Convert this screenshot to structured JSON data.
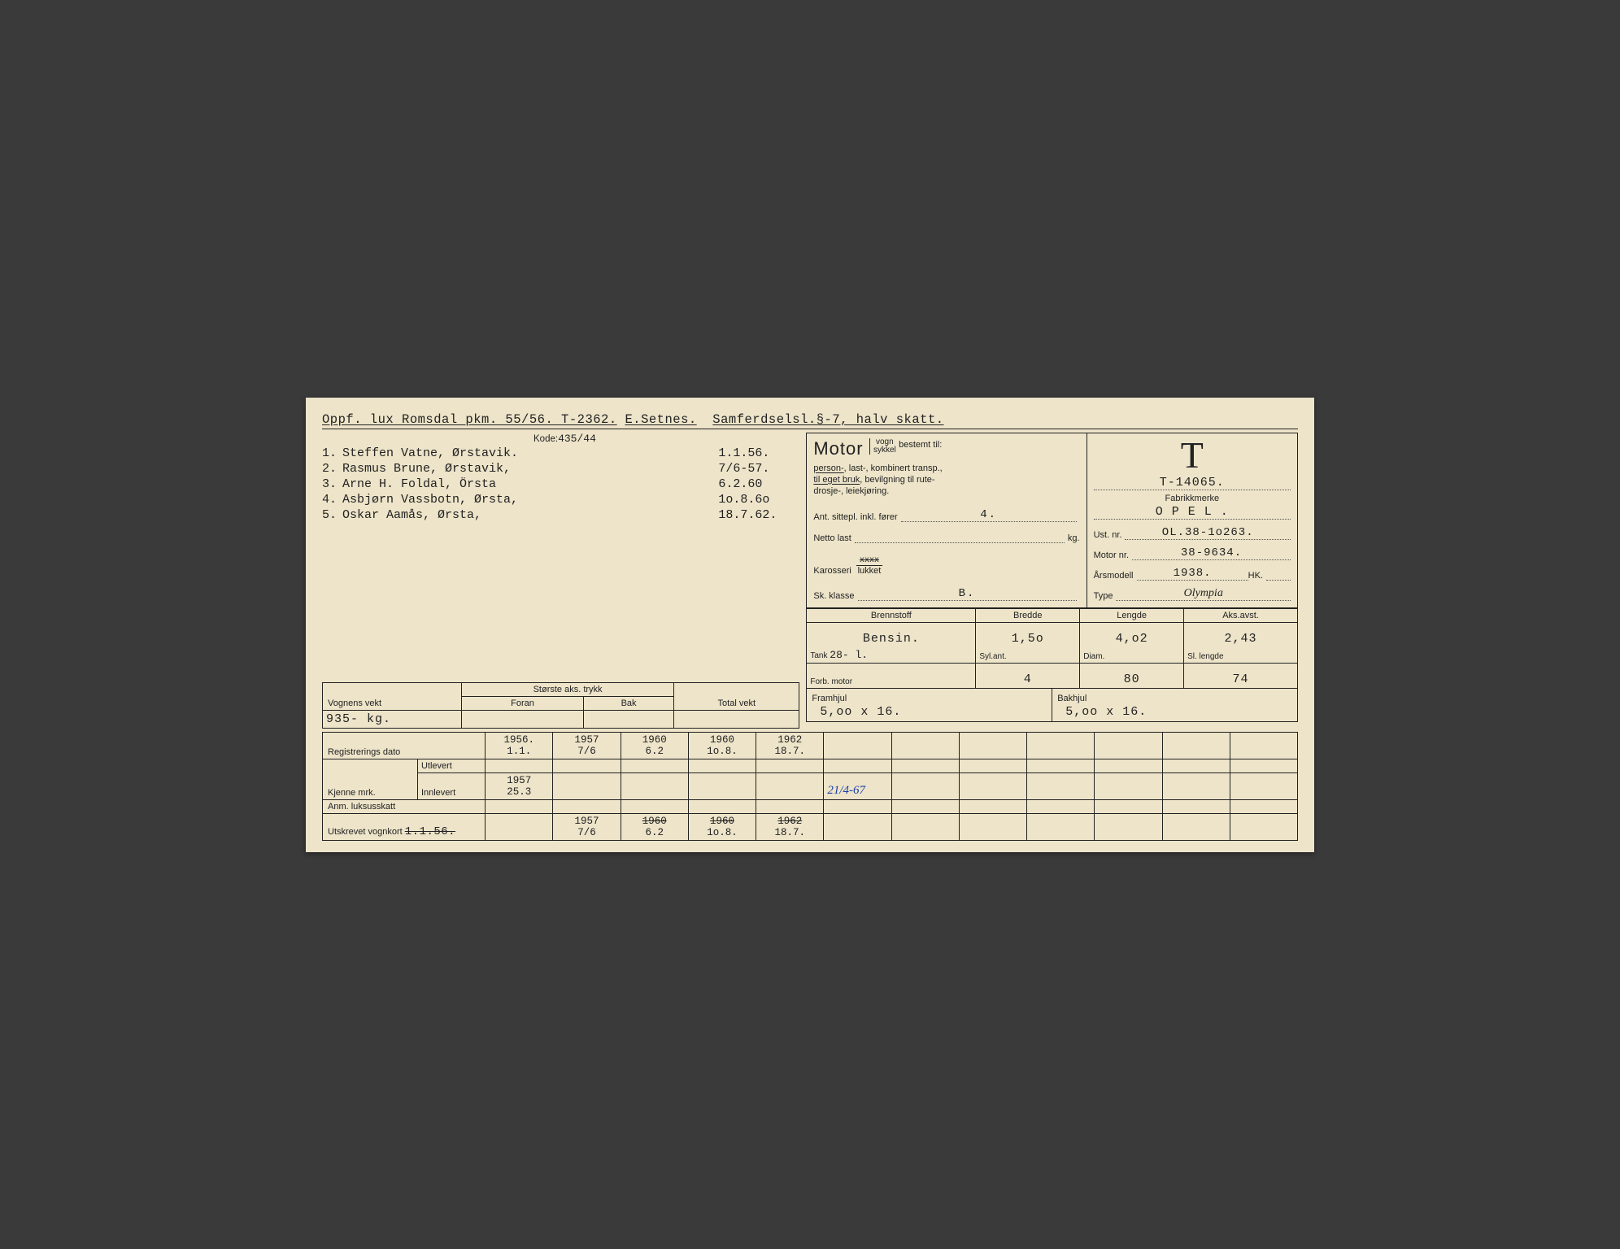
{
  "top": {
    "text_parts": {
      "p1": "Oppf. lux Romsdal pkm. 55/56. T-2362.",
      "p2": "E.Setnes.",
      "p3": "Samferdselsl.§-7, halv skatt."
    }
  },
  "kode": {
    "label": "Kode:",
    "value": "435/44"
  },
  "owners": [
    {
      "n": "1.",
      "name": "Steffen Vatne, Ørstavik.",
      "date": "1.1.56."
    },
    {
      "n": "2.",
      "name": "Rasmus Brune, Ørstavik,",
      "date": "7/6-57."
    },
    {
      "n": "3.",
      "name": "Arne H. Foldal, Örsta",
      "date": "6.2.60"
    },
    {
      "n": "4.",
      "name": "Asbjørn Vassbotn, Ørsta,",
      "date": "1o.8.6o"
    },
    {
      "n": "5.",
      "name": "Oskar Aamås, Ørsta,",
      "date": "18.7.62."
    }
  ],
  "motor_box": {
    "word": "Motor",
    "vogn": "vogn",
    "sykkel": "sykkel",
    "bestemt": "bestemt til:",
    "line1a": "person-",
    "line1b": ", last-, kombinert transp.,",
    "line2a": "til eget bruk",
    "line2b": ", bevilgning til rute-",
    "line3": "drosje-, leiekjøring.",
    "sitte_label": "Ant. sittepl. inkl. fører",
    "sitte_val": "4.",
    "netto_label": "Netto last",
    "netto_val": "",
    "netto_suf": "kg.",
    "kaross_label": "Karosseri",
    "kaross_top": "xxxx",
    "kaross_bot": "lukket",
    "sk_label": "Sk. klasse",
    "sk_val": "B."
  },
  "idbox": {
    "T": "T",
    "reg": "T-14065.",
    "fabrikk_label": "Fabrikkmerke",
    "fabrikk": "O P E L .",
    "ust_label": "Ust. nr.",
    "ust": "OL.38-1o263.",
    "motor_label": "Motor nr.",
    "motor": "38-9634.",
    "aar_label": "Årsmodell",
    "aar": "1938.",
    "hk_label": "HK.",
    "type_label": "Type",
    "type": "Olympia"
  },
  "spec_headers": {
    "brennstoff": "Brennstoff",
    "bredde": "Bredde",
    "lengde": "Lengde",
    "aks": "Aks.avst."
  },
  "spec_row1": {
    "brennstoff": "Bensin.",
    "bredde": "1,5o",
    "lengde": "4,o2",
    "aks": "2,43"
  },
  "spec_sub": {
    "tank_lab": "Tank",
    "tank": "28- l.",
    "syl": "Syl.ant.",
    "diam": "Diam.",
    "sl": "Sl. lengde"
  },
  "spec_row2": {
    "forb_lab": "Forb. motor",
    "forb": "",
    "syl": "4",
    "diam": "80",
    "sl": "74"
  },
  "wheels": {
    "fram_lab": "Framhjul",
    "fram": "5,oo x 16.",
    "bak_lab": "Bakhjul",
    "bak": "5,oo x 16."
  },
  "vognens": {
    "vekt_lab": "Vognens vekt",
    "aks_lab": "Største aks. trykk",
    "foran": "Foran",
    "bak": "Bak",
    "tot": "Total vekt",
    "vekt": "935- kg."
  },
  "rows": {
    "reg_label": "Registrerings dato",
    "reg": [
      [
        "1956.",
        "1.1."
      ],
      [
        "1957",
        "7/6"
      ],
      [
        "1960",
        "6.2"
      ],
      [
        "1960",
        "1o.8."
      ],
      [
        "1962",
        "18.7."
      ]
    ],
    "kjenne": "Kjenne mrk.",
    "utlevert": "Utlevert",
    "innlevert": "Innlevert",
    "innlevert_val": [
      "1957",
      "25.3"
    ],
    "innlevert_hw": "21/4-67",
    "anm": "Anm. luksusskatt",
    "vognkort_lab": "Utskrevet vognkort",
    "vognkort_first": "1.1.56.",
    "vognkort": [
      [
        "1957",
        "7/6"
      ],
      [
        "1960",
        "6.2"
      ],
      [
        "1960",
        "1o.8."
      ],
      [
        "1962",
        "18.7."
      ]
    ]
  }
}
